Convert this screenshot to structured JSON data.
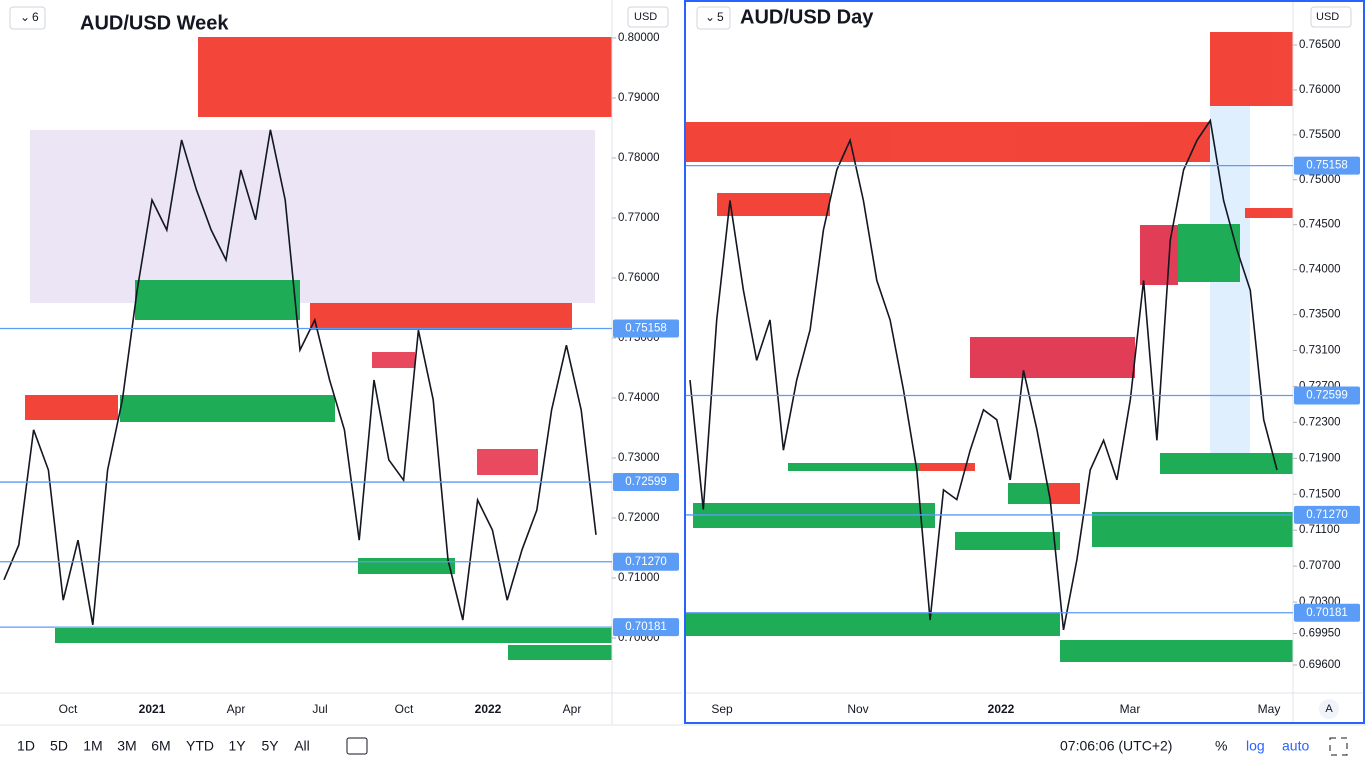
{
  "chart_data": [
    {
      "type": "line",
      "pane": "6",
      "title": "AUD/USD Week",
      "currency": "USD",
      "color": "#131722",
      "x_labels": [
        "Oct",
        "2021",
        "Apr",
        "Jul",
        "Oct",
        "2022",
        "Apr"
      ],
      "values": [
        0.7097,
        0.7155,
        0.7347,
        0.728,
        0.7063,
        0.7163,
        0.7022,
        0.728,
        0.7397,
        0.758,
        0.773,
        0.768,
        0.783,
        0.7747,
        0.768,
        0.763,
        0.778,
        0.7697,
        0.7847,
        0.773,
        0.748,
        0.753,
        0.743,
        0.7347,
        0.7163,
        0.743,
        0.7297,
        0.7263,
        0.7513,
        0.7397,
        0.713,
        0.703,
        0.723,
        0.718,
        0.7063,
        0.7147,
        0.7213,
        0.738,
        0.7488,
        0.738,
        0.7172
      ],
      "ylim": [
        0.69083,
        0.80633
      ],
      "yticks": [
        {
          "value": 0.7,
          "label": "0.70000"
        },
        {
          "value": 0.71,
          "label": "0.71000"
        },
        {
          "value": 0.72,
          "label": "0.72000"
        },
        {
          "value": 0.73,
          "label": "0.73000"
        },
        {
          "value": 0.74,
          "label": "0.74000"
        },
        {
          "value": 0.75,
          "label": "0.75000"
        },
        {
          "value": 0.76,
          "label": "0.76000"
        },
        {
          "value": 0.77,
          "label": "0.77000"
        },
        {
          "value": 0.78,
          "label": "0.78000"
        },
        {
          "value": 0.79,
          "label": "0.79000"
        },
        {
          "value": 0.8,
          "label": "0.80000"
        }
      ],
      "price_tags": [
        0.75158,
        0.72599,
        {
          "value": 0.7127,
          "label": "0.71270"
        },
        0.70181
      ]
    },
    {
      "type": "line",
      "pane": "5",
      "title": "AUD/USD Day",
      "currency": "USD",
      "color": "#131722",
      "x_labels": [
        "Sep",
        "Nov",
        "2022",
        "Mar",
        "May"
      ],
      "values": [
        0.7277,
        0.7133,
        0.7344,
        0.7477,
        0.7377,
        0.7299,
        0.7344,
        0.7199,
        0.7277,
        0.7333,
        0.7444,
        0.7511,
        0.7544,
        0.7477,
        0.7388,
        0.7344,
        0.7266,
        0.7177,
        0.701,
        0.7155,
        0.7144,
        0.7199,
        0.7244,
        0.7233,
        0.7166,
        0.7288,
        0.7222,
        0.7144,
        0.6999,
        0.7077,
        0.7177,
        0.721,
        0.7166,
        0.7255,
        0.7388,
        0.721,
        0.7433,
        0.7511,
        0.7544,
        0.7566,
        0.7477,
        0.7422,
        0.7377,
        0.7233,
        0.7177
      ],
      "ylim": [
        0.69288,
        0.77001
      ],
      "yticks": [
        {
          "value": 0.696,
          "label": "0.69600"
        },
        {
          "value": 0.6995,
          "label": "0.69950"
        },
        {
          "value": 0.703,
          "label": "0.70300"
        },
        {
          "value": 0.707,
          "label": "0.70700"
        },
        {
          "value": 0.711,
          "label": "0.71100"
        },
        {
          "value": 0.715,
          "label": "0.71500"
        },
        {
          "value": 0.719,
          "label": "0.71900"
        },
        {
          "value": 0.723,
          "label": "0.72300"
        },
        {
          "value": 0.727,
          "label": "0.72700"
        },
        {
          "value": 0.731,
          "label": "0.73100"
        },
        {
          "value": 0.735,
          "label": "0.73500"
        },
        {
          "value": 0.74,
          "label": "0.74000"
        },
        {
          "value": 0.745,
          "label": "0.74500"
        },
        {
          "value": 0.75,
          "label": "0.75000"
        },
        {
          "value": 0.755,
          "label": "0.75500"
        },
        {
          "value": 0.76,
          "label": "0.76000"
        },
        {
          "value": 0.765,
          "label": "0.76500"
        }
      ],
      "price_tags": [
        0.75158,
        0.72599,
        {
          "value": 0.7127,
          "label": "0.71270"
        },
        0.70181
      ]
    }
  ],
  "toolbar": {
    "ranges": [
      "1D",
      "5D",
      "1M",
      "3M",
      "6M",
      "YTD",
      "1Y",
      "5Y",
      "All"
    ],
    "clock": "07:06:06 (UTC+2)",
    "percent": "%",
    "log": "log",
    "auto": "auto",
    "scale_button": "A"
  }
}
